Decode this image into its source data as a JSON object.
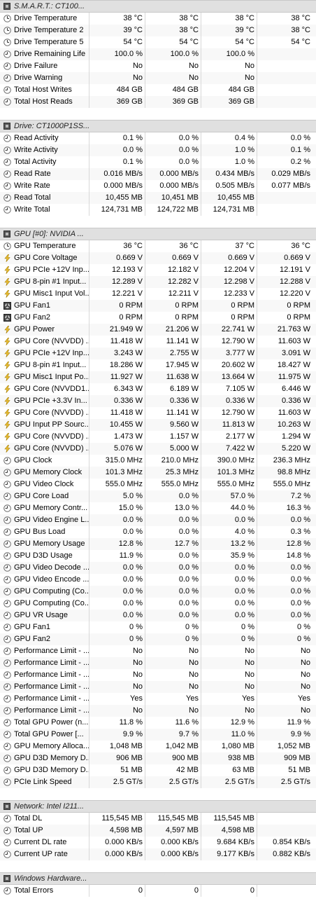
{
  "sections": [
    {
      "title": "S.M.A.R.T.: CT100...",
      "rows": [
        {
          "icon": "temp",
          "name": "Drive Temperature",
          "v": [
            "38 °C",
            "38 °C",
            "38 °C",
            "38 °C"
          ]
        },
        {
          "icon": "temp",
          "name": "Drive Temperature 2",
          "v": [
            "39 °C",
            "38 °C",
            "39 °C",
            "38 °C"
          ]
        },
        {
          "icon": "temp",
          "name": "Drive Temperature 5",
          "v": [
            "54 °C",
            "54 °C",
            "54 °C",
            "54 °C"
          ]
        },
        {
          "icon": "clock",
          "name": "Drive Remaining Life",
          "v": [
            "100.0 %",
            "100.0 %",
            "100.0 %",
            ""
          ]
        },
        {
          "icon": "clock",
          "name": "Drive Failure",
          "v": [
            "No",
            "No",
            "No",
            ""
          ]
        },
        {
          "icon": "clock",
          "name": "Drive Warning",
          "v": [
            "No",
            "No",
            "No",
            ""
          ]
        },
        {
          "icon": "clock",
          "name": "Total Host Writes",
          "v": [
            "484 GB",
            "484 GB",
            "484 GB",
            ""
          ]
        },
        {
          "icon": "clock",
          "name": "Total Host Reads",
          "v": [
            "369 GB",
            "369 GB",
            "369 GB",
            ""
          ]
        }
      ]
    },
    {
      "title": "Drive: CT1000P1SS...",
      "rows": [
        {
          "icon": "clock",
          "name": "Read Activity",
          "v": [
            "0.1 %",
            "0.0 %",
            "0.4 %",
            "0.0 %"
          ]
        },
        {
          "icon": "clock",
          "name": "Write Activity",
          "v": [
            "0.0 %",
            "0.0 %",
            "1.0 %",
            "0.1 %"
          ]
        },
        {
          "icon": "clock",
          "name": "Total Activity",
          "v": [
            "0.1 %",
            "0.0 %",
            "1.0 %",
            "0.2 %"
          ]
        },
        {
          "icon": "clock",
          "name": "Read Rate",
          "v": [
            "0.016 MB/s",
            "0.000 MB/s",
            "0.434 MB/s",
            "0.029 MB/s"
          ]
        },
        {
          "icon": "clock",
          "name": "Write Rate",
          "v": [
            "0.000 MB/s",
            "0.000 MB/s",
            "0.505 MB/s",
            "0.077 MB/s"
          ]
        },
        {
          "icon": "clock",
          "name": "Read Total",
          "v": [
            "10,455 MB",
            "10,451 MB",
            "10,455 MB",
            ""
          ]
        },
        {
          "icon": "clock",
          "name": "Write Total",
          "v": [
            "124,731 MB",
            "124,722 MB",
            "124,731 MB",
            ""
          ]
        }
      ]
    },
    {
      "title": "GPU [#0]: NVIDIA ...",
      "rows": [
        {
          "icon": "temp",
          "name": "GPU Temperature",
          "v": [
            "36 °C",
            "36 °C",
            "37 °C",
            "36 °C"
          ]
        },
        {
          "icon": "bolt",
          "name": "GPU Core Voltage",
          "v": [
            "0.669 V",
            "0.669 V",
            "0.669 V",
            "0.669 V"
          ]
        },
        {
          "icon": "bolt",
          "name": "GPU PCIe +12V Inp...",
          "v": [
            "12.193 V",
            "12.182 V",
            "12.204 V",
            "12.191 V"
          ]
        },
        {
          "icon": "bolt",
          "name": "GPU 8-pin #1 Input...",
          "v": [
            "12.289 V",
            "12.282 V",
            "12.298 V",
            "12.288 V"
          ]
        },
        {
          "icon": "bolt",
          "name": "GPU Misc1 Input Vol...",
          "v": [
            "12.221 V",
            "12.211 V",
            "12.233 V",
            "12.220 V"
          ]
        },
        {
          "icon": "fan",
          "name": "GPU Fan1",
          "v": [
            "0 RPM",
            "0 RPM",
            "0 RPM",
            "0 RPM"
          ]
        },
        {
          "icon": "fan",
          "name": "GPU Fan2",
          "v": [
            "0 RPM",
            "0 RPM",
            "0 RPM",
            "0 RPM"
          ]
        },
        {
          "icon": "bolt",
          "name": "GPU Power",
          "v": [
            "21.949 W",
            "21.206 W",
            "22.741 W",
            "21.763 W"
          ]
        },
        {
          "icon": "bolt",
          "name": "GPU Core (NVVDD) ...",
          "v": [
            "11.418 W",
            "11.141 W",
            "12.790 W",
            "11.603 W"
          ]
        },
        {
          "icon": "bolt",
          "name": "GPU PCIe +12V Inp...",
          "v": [
            "3.243 W",
            "2.755 W",
            "3.777 W",
            "3.091 W"
          ]
        },
        {
          "icon": "bolt",
          "name": "GPU 8-pin #1 Input...",
          "v": [
            "18.286 W",
            "17.945 W",
            "20.602 W",
            "18.427 W"
          ]
        },
        {
          "icon": "bolt",
          "name": "GPU Misc1 Input Po...",
          "v": [
            "11.927 W",
            "11.638 W",
            "13.664 W",
            "11.975 W"
          ]
        },
        {
          "icon": "bolt",
          "name": "GPU Core (NVVDD1...",
          "v": [
            "6.343 W",
            "6.189 W",
            "7.105 W",
            "6.446 W"
          ]
        },
        {
          "icon": "bolt",
          "name": "GPU PCIe +3.3V In...",
          "v": [
            "0.336 W",
            "0.336 W",
            "0.336 W",
            "0.336 W"
          ]
        },
        {
          "icon": "bolt",
          "name": "GPU Core (NVVDD) ...",
          "v": [
            "11.418 W",
            "11.141 W",
            "12.790 W",
            "11.603 W"
          ]
        },
        {
          "icon": "bolt",
          "name": "GPU Input PP Sourc...",
          "v": [
            "10.455 W",
            "9.560 W",
            "11.813 W",
            "10.263 W"
          ]
        },
        {
          "icon": "bolt",
          "name": "GPU Core (NVVDD) ...",
          "v": [
            "1.473 W",
            "1.157 W",
            "2.177 W",
            "1.294 W"
          ]
        },
        {
          "icon": "bolt",
          "name": "GPU Core (NVVDD) ...",
          "v": [
            "5.076 W",
            "5.000 W",
            "7.422 W",
            "5.220 W"
          ]
        },
        {
          "icon": "clock",
          "name": "GPU Clock",
          "v": [
            "315.0 MHz",
            "210.0 MHz",
            "390.0 MHz",
            "236.3 MHz"
          ]
        },
        {
          "icon": "clock",
          "name": "GPU Memory Clock",
          "v": [
            "101.3 MHz",
            "25.3 MHz",
            "101.3 MHz",
            "98.8 MHz"
          ]
        },
        {
          "icon": "clock",
          "name": "GPU Video Clock",
          "v": [
            "555.0 MHz",
            "555.0 MHz",
            "555.0 MHz",
            "555.0 MHz"
          ]
        },
        {
          "icon": "clock",
          "name": "GPU Core Load",
          "v": [
            "5.0 %",
            "0.0 %",
            "57.0 %",
            "7.2 %"
          ]
        },
        {
          "icon": "clock",
          "name": "GPU Memory Contr...",
          "v": [
            "15.0 %",
            "13.0 %",
            "44.0 %",
            "16.3 %"
          ]
        },
        {
          "icon": "clock",
          "name": "GPU Video Engine L...",
          "v": [
            "0.0 %",
            "0.0 %",
            "0.0 %",
            "0.0 %"
          ]
        },
        {
          "icon": "clock",
          "name": "GPU Bus Load",
          "v": [
            "0.0 %",
            "0.0 %",
            "4.0 %",
            "0.3 %"
          ]
        },
        {
          "icon": "clock",
          "name": "GPU Memory Usage",
          "v": [
            "12.8 %",
            "12.7 %",
            "13.2 %",
            "12.8 %"
          ]
        },
        {
          "icon": "clock",
          "name": "GPU D3D Usage",
          "v": [
            "11.9 %",
            "0.0 %",
            "35.9 %",
            "14.8 %"
          ]
        },
        {
          "icon": "clock",
          "name": "GPU Video Decode ...",
          "v": [
            "0.0 %",
            "0.0 %",
            "0.0 %",
            "0.0 %"
          ]
        },
        {
          "icon": "clock",
          "name": "GPU Video Encode ...",
          "v": [
            "0.0 %",
            "0.0 %",
            "0.0 %",
            "0.0 %"
          ]
        },
        {
          "icon": "clock",
          "name": "GPU Computing (Co...",
          "v": [
            "0.0 %",
            "0.0 %",
            "0.0 %",
            "0.0 %"
          ]
        },
        {
          "icon": "clock",
          "name": "GPU Computing (Co...",
          "v": [
            "0.0 %",
            "0.0 %",
            "0.0 %",
            "0.0 %"
          ]
        },
        {
          "icon": "clock",
          "name": "GPU VR Usage",
          "v": [
            "0.0 %",
            "0.0 %",
            "0.0 %",
            "0.0 %"
          ]
        },
        {
          "icon": "clock",
          "name": "GPU Fan1",
          "v": [
            "0 %",
            "0 %",
            "0 %",
            "0 %"
          ]
        },
        {
          "icon": "clock",
          "name": "GPU Fan2",
          "v": [
            "0 %",
            "0 %",
            "0 %",
            "0 %"
          ]
        },
        {
          "icon": "clock",
          "name": "Performance Limit - ...",
          "v": [
            "No",
            "No",
            "No",
            "No"
          ]
        },
        {
          "icon": "clock",
          "name": "Performance Limit - ...",
          "v": [
            "No",
            "No",
            "No",
            "No"
          ]
        },
        {
          "icon": "clock",
          "name": "Performance Limit - ...",
          "v": [
            "No",
            "No",
            "No",
            "No"
          ]
        },
        {
          "icon": "clock",
          "name": "Performance Limit - ...",
          "v": [
            "No",
            "No",
            "No",
            "No"
          ]
        },
        {
          "icon": "clock",
          "name": "Performance Limit - ...",
          "v": [
            "Yes",
            "Yes",
            "Yes",
            "Yes"
          ]
        },
        {
          "icon": "clock",
          "name": "Performance Limit - ...",
          "v": [
            "No",
            "No",
            "No",
            "No"
          ]
        },
        {
          "icon": "clock",
          "name": "Total GPU Power (n...",
          "v": [
            "11.8 %",
            "11.6 %",
            "12.9 %",
            "11.9 %"
          ]
        },
        {
          "icon": "clock",
          "name": "Total GPU Power [...",
          "v": [
            "9.9 %",
            "9.7 %",
            "11.0 %",
            "9.9 %"
          ]
        },
        {
          "icon": "clock",
          "name": "GPU Memory Alloca...",
          "v": [
            "1,048 MB",
            "1,042 MB",
            "1,080 MB",
            "1,052 MB"
          ]
        },
        {
          "icon": "clock",
          "name": "GPU D3D Memory D...",
          "v": [
            "906 MB",
            "900 MB",
            "938 MB",
            "909 MB"
          ]
        },
        {
          "icon": "clock",
          "name": "GPU D3D Memory D...",
          "v": [
            "51 MB",
            "42 MB",
            "63 MB",
            "51 MB"
          ]
        },
        {
          "icon": "clock",
          "name": "PCIe Link Speed",
          "v": [
            "2.5 GT/s",
            "2.5 GT/s",
            "2.5 GT/s",
            "2.5 GT/s"
          ]
        }
      ]
    },
    {
      "title": "Network: Intel I211...",
      "rows": [
        {
          "icon": "clock",
          "name": "Total DL",
          "v": [
            "115,545 MB",
            "115,545 MB",
            "115,545 MB",
            ""
          ]
        },
        {
          "icon": "clock",
          "name": "Total UP",
          "v": [
            "4,598 MB",
            "4,597 MB",
            "4,598 MB",
            ""
          ]
        },
        {
          "icon": "clock",
          "name": "Current DL rate",
          "v": [
            "0.000 KB/s",
            "0.000 KB/s",
            "9.684 KB/s",
            "0.854 KB/s"
          ]
        },
        {
          "icon": "clock",
          "name": "Current UP rate",
          "v": [
            "0.000 KB/s",
            "0.000 KB/s",
            "9.177 KB/s",
            "0.882 KB/s"
          ]
        }
      ]
    },
    {
      "title": "Windows Hardware...",
      "rows": [
        {
          "icon": "clock",
          "name": "Total Errors",
          "v": [
            "0",
            "0",
            "0",
            ""
          ]
        }
      ]
    }
  ]
}
